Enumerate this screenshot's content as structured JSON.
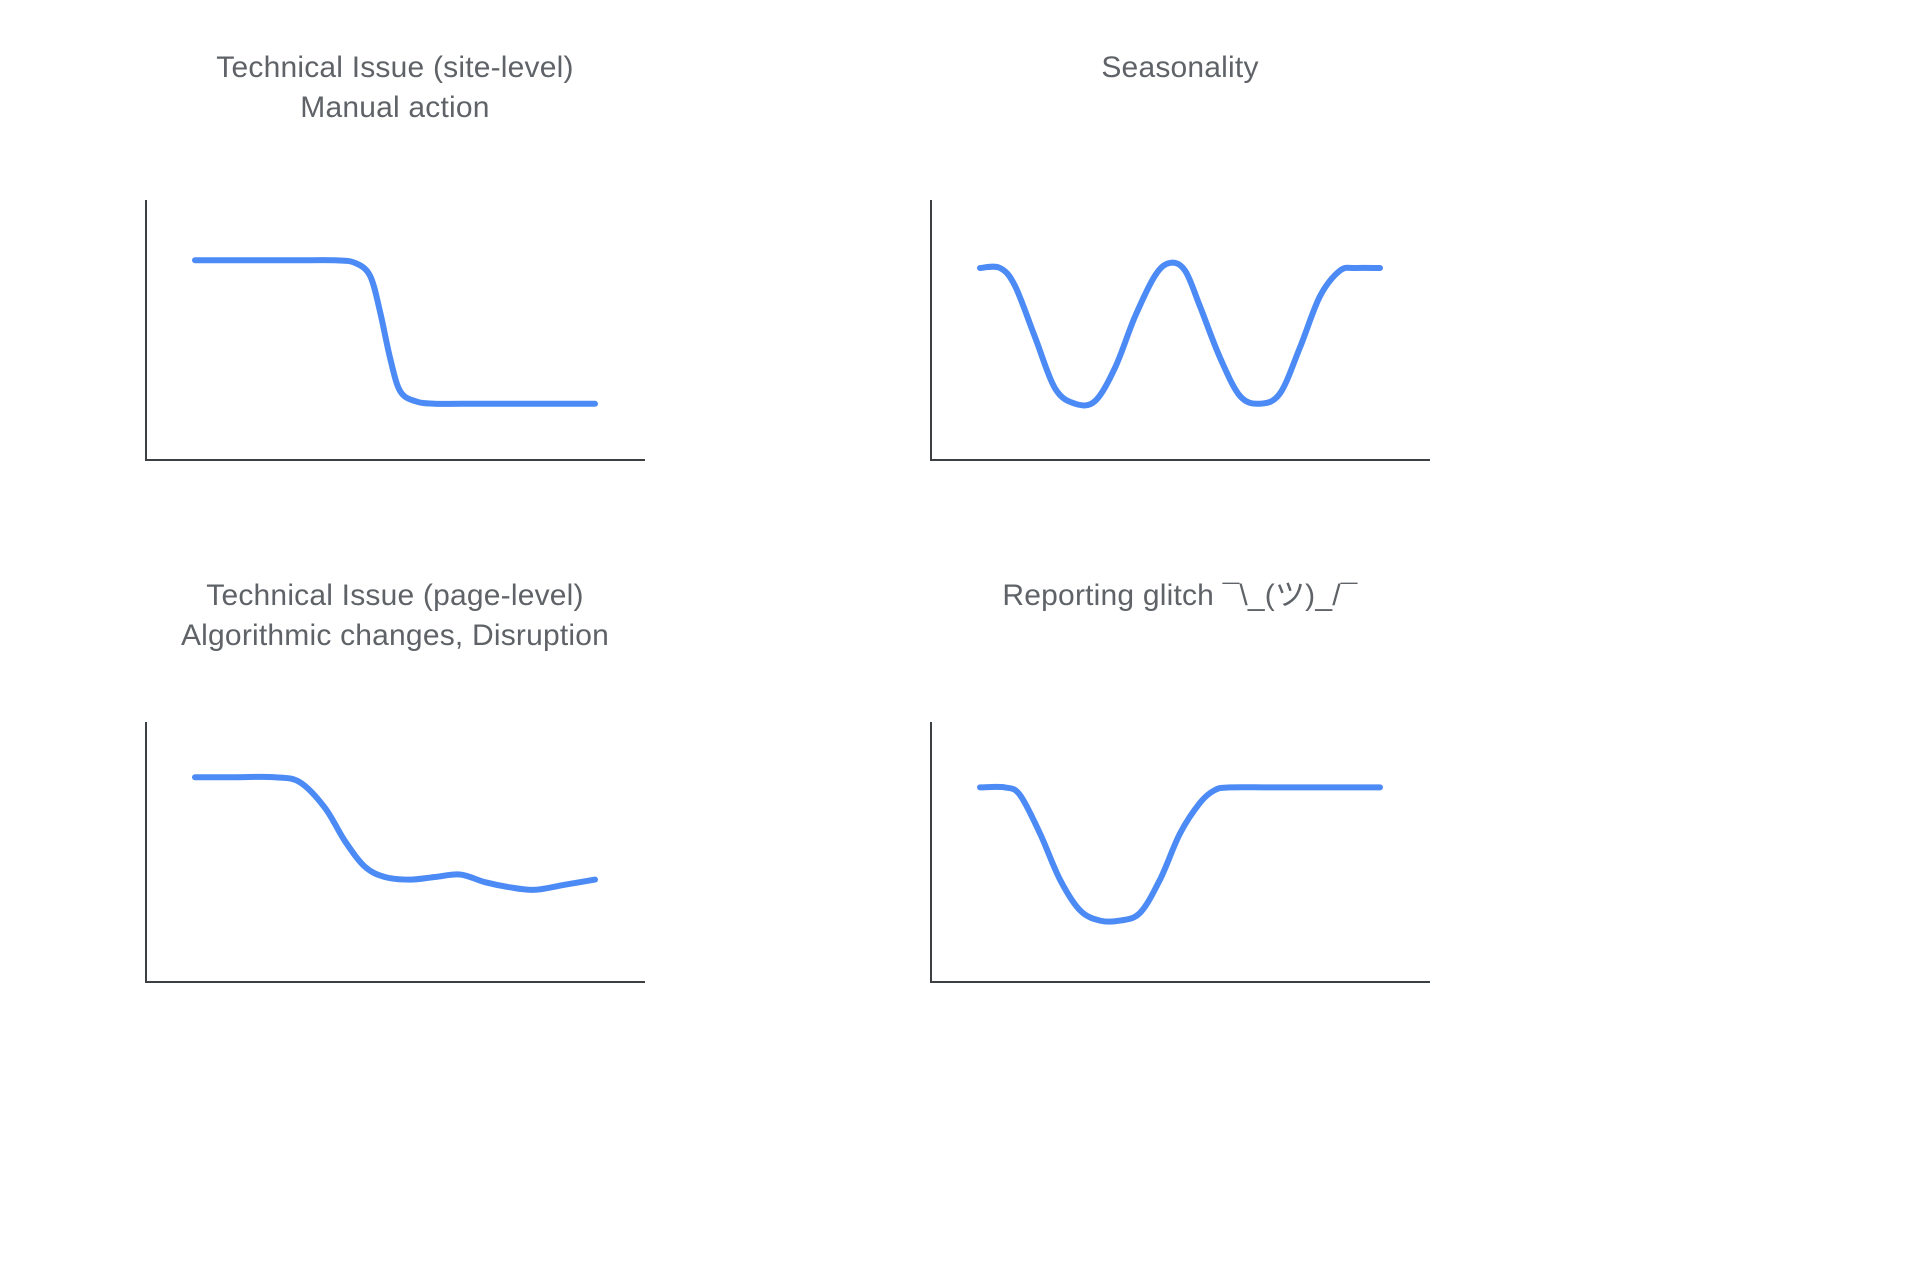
{
  "style": {
    "background": "#ffffff",
    "title_color": "#5f6368",
    "axis_color": "#3c4043",
    "line_color": "#4c8bf5"
  },
  "chart_data": [
    {
      "type": "line",
      "title": "Technical Issue (site-level)\nManual action",
      "xlabel": "",
      "ylabel": "",
      "axis_ticks": false,
      "x_range": [
        0,
        100
      ],
      "y_range": [
        0,
        100
      ],
      "points": [
        [
          10,
          78
        ],
        [
          20,
          78
        ],
        [
          30,
          78
        ],
        [
          38,
          78
        ],
        [
          42,
          77
        ],
        [
          45,
          72
        ],
        [
          47,
          58
        ],
        [
          49,
          40
        ],
        [
          51,
          27
        ],
        [
          54,
          23
        ],
        [
          58,
          22
        ],
        [
          66,
          22
        ],
        [
          74,
          22
        ],
        [
          82,
          22
        ],
        [
          90,
          22
        ]
      ]
    },
    {
      "type": "line",
      "title": "Seasonality",
      "xlabel": "",
      "ylabel": "",
      "axis_ticks": false,
      "x_range": [
        0,
        100
      ],
      "y_range": [
        0,
        100
      ],
      "points": [
        [
          10,
          75
        ],
        [
          14,
          75
        ],
        [
          17,
          68
        ],
        [
          21,
          48
        ],
        [
          25,
          28
        ],
        [
          29,
          22
        ],
        [
          33,
          23
        ],
        [
          37,
          36
        ],
        [
          41,
          56
        ],
        [
          45,
          72
        ],
        [
          48,
          77
        ],
        [
          51,
          74
        ],
        [
          54,
          60
        ],
        [
          58,
          40
        ],
        [
          62,
          25
        ],
        [
          66,
          22
        ],
        [
          70,
          26
        ],
        [
          74,
          44
        ],
        [
          78,
          64
        ],
        [
          82,
          74
        ],
        [
          85,
          75
        ],
        [
          90,
          75
        ]
      ]
    },
    {
      "type": "line",
      "title": "Technical Issue (page-level)\nAlgorithmic changes, Disruption",
      "xlabel": "",
      "ylabel": "",
      "axis_ticks": false,
      "x_range": [
        0,
        100
      ],
      "y_range": [
        0,
        100
      ],
      "points": [
        [
          10,
          80
        ],
        [
          18,
          80
        ],
        [
          26,
          80
        ],
        [
          31,
          78
        ],
        [
          36,
          68
        ],
        [
          40,
          55
        ],
        [
          44,
          45
        ],
        [
          48,
          41
        ],
        [
          53,
          40
        ],
        [
          58,
          41
        ],
        [
          63,
          42
        ],
        [
          68,
          39
        ],
        [
          73,
          37
        ],
        [
          78,
          36
        ],
        [
          84,
          38
        ],
        [
          90,
          40
        ]
      ]
    },
    {
      "type": "line",
      "title": "Reporting glitch ¯\\_(ツ)_/¯",
      "xlabel": "",
      "ylabel": "",
      "axis_ticks": false,
      "x_range": [
        0,
        100
      ],
      "y_range": [
        0,
        100
      ],
      "points": [
        [
          10,
          76
        ],
        [
          15,
          76
        ],
        [
          18,
          73
        ],
        [
          22,
          58
        ],
        [
          26,
          40
        ],
        [
          30,
          28
        ],
        [
          34,
          24
        ],
        [
          38,
          24
        ],
        [
          42,
          27
        ],
        [
          46,
          40
        ],
        [
          50,
          58
        ],
        [
          54,
          70
        ],
        [
          57,
          75
        ],
        [
          60,
          76
        ],
        [
          68,
          76
        ],
        [
          78,
          76
        ],
        [
          90,
          76
        ]
      ]
    }
  ]
}
